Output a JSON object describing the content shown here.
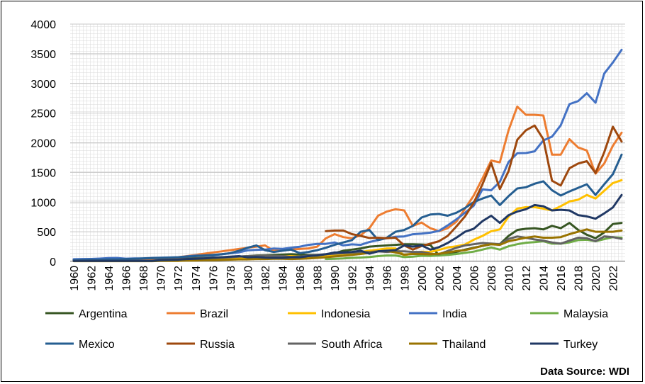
{
  "source_note": "Data Source: WDI",
  "chart_data": {
    "type": "line",
    "title": "",
    "xlabel": "",
    "ylabel": "",
    "ylim": [
      0,
      4000
    ],
    "yticks": [
      0,
      500,
      1000,
      1500,
      2000,
      2500,
      3000,
      3500,
      4000
    ],
    "xlim": [
      1960,
      2023
    ],
    "xtick_step": 2,
    "grid": true,
    "legend_position": "bottom",
    "series": [
      {
        "name": "Argentina",
        "color": "#375623",
        "x_start": 1960,
        "values": [
          null,
          null,
          25,
          25,
          25,
          25,
          25,
          25,
          25,
          30,
          35,
          38,
          40,
          50,
          55,
          60,
          65,
          70,
          75,
          80,
          90,
          100,
          105,
          110,
          115,
          120,
          115,
          110,
          110,
          115,
          140,
          180,
          200,
          220,
          250,
          260,
          270,
          280,
          290,
          290,
          285,
          280,
          100,
          130,
          160,
          200,
          230,
          260,
          290,
          290,
          430,
          530,
          550,
          560,
          540,
          600,
          560,
          650,
          530,
          450,
          390,
          490,
          630,
          650
        ]
      },
      {
        "name": "Brazil",
        "color": "#ED7D31",
        "x_start": 1960,
        "values": [
          20,
          20,
          20,
          25,
          25,
          25,
          30,
          35,
          40,
          45,
          50,
          60,
          70,
          90,
          110,
          130,
          150,
          170,
          190,
          210,
          230,
          250,
          270,
          180,
          190,
          200,
          210,
          220,
          250,
          390,
          460,
          410,
          390,
          440,
          560,
          770,
          840,
          880,
          860,
          600,
          655,
          560,
          510,
          560,
          670,
          890,
          1110,
          1400,
          1700,
          1670,
          2210,
          2610,
          2470,
          2470,
          2460,
          1800,
          1800,
          2060,
          1920,
          1870,
          1480,
          1650,
          1950,
          2170
        ]
      },
      {
        "name": "Indonesia",
        "color": "#FFC000",
        "x_start": 1960,
        "values": [
          null,
          null,
          null,
          null,
          null,
          null,
          null,
          null,
          null,
          null,
          20,
          20,
          20,
          25,
          30,
          35,
          40,
          45,
          50,
          55,
          60,
          70,
          80,
          80,
          85,
          90,
          80,
          75,
          80,
          90,
          110,
          130,
          140,
          160,
          180,
          200,
          220,
          220,
          100,
          140,
          165,
          160,
          195,
          235,
          255,
          285,
          365,
          430,
          510,
          540,
          755,
          890,
          915,
          915,
          890,
          860,
          930,
          1010,
          1040,
          1120,
          1060,
          1190,
          1320,
          1370
        ]
      },
      {
        "name": "India",
        "color": "#4472C4",
        "x_start": 1960,
        "values": [
          37,
          40,
          42,
          48,
          56,
          59,
          46,
          50,
          53,
          58,
          62,
          67,
          71,
          85,
          99,
          98,
          102,
          121,
          137,
          153,
          186,
          196,
          200,
          218,
          212,
          232,
          248,
          279,
          296,
          296,
          320,
          270,
          288,
          279,
          327,
          360,
          392,
          415,
          421,
          458,
          468,
          485,
          515,
          607,
          709,
          820,
          940,
          1216,
          1199,
          1341,
          1675,
          1823,
          1827,
          1856,
          2039,
          2103,
          2294,
          2651,
          2702,
          2835,
          2675,
          3167,
          3353,
          3567
        ]
      },
      {
        "name": "Malaysia",
        "color": "#70AD47",
        "x_start": 1960,
        "values": [
          null,
          null,
          null,
          null,
          null,
          null,
          null,
          null,
          null,
          null,
          null,
          null,
          null,
          null,
          null,
          null,
          null,
          null,
          null,
          null,
          null,
          null,
          null,
          null,
          null,
          null,
          null,
          null,
          null,
          40,
          44,
          50,
          60,
          66,
          75,
          90,
          100,
          100,
          73,
          80,
          95,
          93,
          100,
          110,
          125,
          145,
          165,
          200,
          235,
          200,
          255,
          290,
          315,
          325,
          340,
          300,
          300,
          320,
          360,
          365,
          340,
          375,
          410,
          400
        ]
      },
      {
        "name": "Mexico",
        "color": "#255E91",
        "x_start": 1960,
        "values": [
          20,
          25,
          30,
          30,
          35,
          35,
          40,
          45,
          50,
          55,
          60,
          65,
          70,
          80,
          90,
          100,
          110,
          120,
          140,
          180,
          230,
          270,
          190,
          160,
          180,
          200,
          140,
          160,
          190,
          230,
          280,
          320,
          360,
          500,
          530,
          360,
          400,
          500,
          530,
          600,
          740,
          790,
          800,
          770,
          820,
          900,
          1000,
          1060,
          1110,
          950,
          1100,
          1230,
          1250,
          1310,
          1350,
          1200,
          1110,
          1180,
          1240,
          1300,
          1120,
          1300,
          1470,
          1800
        ]
      },
      {
        "name": "Russia",
        "color": "#9E480E",
        "x_start": 1960,
        "values": [
          null,
          null,
          null,
          null,
          null,
          null,
          null,
          null,
          null,
          null,
          null,
          null,
          null,
          null,
          null,
          null,
          null,
          null,
          null,
          null,
          null,
          null,
          null,
          null,
          null,
          null,
          null,
          null,
          null,
          510,
          520,
          520,
          460,
          430,
          395,
          400,
          390,
          400,
          270,
          200,
          260,
          300,
          340,
          430,
          590,
          760,
          990,
          1300,
          1660,
          1220,
          1520,
          2050,
          2210,
          2290,
          2060,
          1360,
          1280,
          1570,
          1650,
          1690,
          1490,
          1840,
          2270,
          2020
        ]
      },
      {
        "name": "South Africa",
        "color": "#636363",
        "x_start": 1960,
        "values": [
          10,
          10,
          10,
          10,
          10,
          10,
          10,
          10,
          10,
          10,
          30,
          35,
          40,
          45,
          50,
          55,
          60,
          65,
          70,
          80,
          90,
          95,
          100,
          95,
          90,
          75,
          80,
          100,
          110,
          120,
          130,
          140,
          150,
          150,
          160,
          170,
          160,
          170,
          170,
          160,
          160,
          130,
          120,
          175,
          230,
          270,
          290,
          310,
          300,
          290,
          380,
          420,
          400,
          370,
          350,
          320,
          300,
          350,
          400,
          390,
          340,
          420,
          410,
          380
        ]
      },
      {
        "name": "Thailand",
        "color": "#997300",
        "x_start": 1960,
        "values": [
          5,
          5,
          5,
          5,
          5,
          5,
          5,
          5,
          5,
          5,
          10,
          10,
          10,
          15,
          15,
          20,
          20,
          25,
          30,
          35,
          35,
          40,
          40,
          45,
          45,
          40,
          45,
          50,
          60,
          70,
          85,
          95,
          110,
          125,
          145,
          170,
          180,
          150,
          115,
          125,
          125,
          120,
          130,
          150,
          175,
          190,
          225,
          265,
          290,
          280,
          340,
          370,
          400,
          420,
          400,
          400,
          410,
          460,
          500,
          540,
          500,
          500,
          500,
          520
        ]
      },
      {
        "name": "Turkey",
        "color": "#203864",
        "x_start": 1960,
        "values": [
          10,
          10,
          10,
          10,
          10,
          10,
          10,
          10,
          10,
          10,
          20,
          25,
          30,
          40,
          45,
          50,
          60,
          70,
          80,
          90,
          70,
          75,
          65,
          60,
          60,
          70,
          70,
          90,
          100,
          120,
          150,
          150,
          160,
          180,
          130,
          170,
          180,
          190,
          270,
          250,
          270,
          200,
          240,
          310,
          400,
          500,
          550,
          680,
          770,
          650,
          780,
          840,
          880,
          950,
          930,
          860,
          870,
          860,
          780,
          760,
          720,
          810,
          910,
          1120
        ]
      }
    ]
  }
}
